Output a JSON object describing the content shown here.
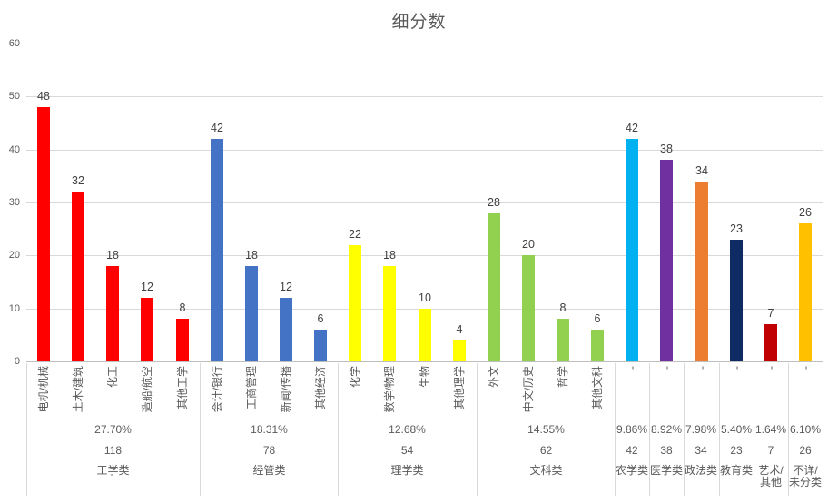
{
  "chart_data": {
    "type": "bar",
    "title": "细分数",
    "xlabel": "",
    "ylabel": "",
    "ylim": [
      0,
      60
    ],
    "yticks": [
      0,
      10,
      20,
      30,
      40,
      50,
      60
    ],
    "grid": true,
    "legend": false,
    "value_labels": true,
    "gridline_color": "#d9d9d9",
    "axis_line_color": "#bfbfbf",
    "text_color": "#595959",
    "value_label_color": "#404040",
    "groups": [
      {
        "name": "工学类",
        "percent": "27.70%",
        "total": "118",
        "color": "#FF0000",
        "bars": [
          {
            "label": "电机/机械",
            "value": 48
          },
          {
            "label": "土木/建筑",
            "value": 32
          },
          {
            "label": "化工",
            "value": 18
          },
          {
            "label": "造船/航空",
            "value": 12
          },
          {
            "label": "其他工学",
            "value": 8
          }
        ]
      },
      {
        "name": "经管类",
        "percent": "18.31%",
        "total": "78",
        "color": "#4472C4",
        "bars": [
          {
            "label": "会计/银行",
            "value": 42
          },
          {
            "label": "工商管理",
            "value": 18
          },
          {
            "label": "新闻/传播",
            "value": 12
          },
          {
            "label": "其他经济",
            "value": 6
          }
        ]
      },
      {
        "name": "理学类",
        "percent": "12.68%",
        "total": "54",
        "color": "#FFFF00",
        "bars": [
          {
            "label": "化学",
            "value": 22
          },
          {
            "label": "数学/物理",
            "value": 18
          },
          {
            "label": "生物",
            "value": 10
          },
          {
            "label": "其他理学",
            "value": 4
          }
        ]
      },
      {
        "name": "文科类",
        "percent": "14.55%",
        "total": "62",
        "color": "#92D050",
        "bars": [
          {
            "label": "外文",
            "value": 28
          },
          {
            "label": "中文/历史",
            "value": 20
          },
          {
            "label": "哲学",
            "value": 8
          },
          {
            "label": "其他文科",
            "value": 6
          }
        ]
      },
      {
        "name": "农学类",
        "percent": "9.86%",
        "total": "42",
        "color": "#00B0F0",
        "bars": [
          {
            "label": "-",
            "value": 42
          }
        ]
      },
      {
        "name": "医学类",
        "percent": "8.92%",
        "total": "38",
        "color": "#7030A0",
        "bars": [
          {
            "label": "-",
            "value": 38
          }
        ]
      },
      {
        "name": "政法类",
        "percent": "7.98%",
        "total": "34",
        "color": "#ED7D31",
        "bars": [
          {
            "label": "-",
            "value": 34
          }
        ]
      },
      {
        "name": "教育类",
        "percent": "5.40%",
        "total": "23",
        "color": "#0E2B64",
        "bars": [
          {
            "label": "-",
            "value": 23
          }
        ]
      },
      {
        "name": "艺术/其他",
        "percent": "1.64%",
        "total": "7",
        "color": "#C00000",
        "bars": [
          {
            "label": "-",
            "value": 7
          }
        ]
      },
      {
        "name": "不详/未分类",
        "percent": "6.10%",
        "total": "26",
        "color": "#FFC000",
        "bars": [
          {
            "label": "-",
            "value": 26
          }
        ]
      }
    ]
  }
}
